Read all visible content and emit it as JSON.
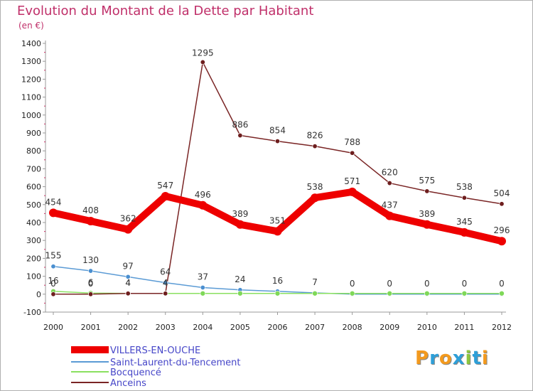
{
  "chart_data": {
    "type": "line",
    "title": "Evolution du Montant de la Dette par Habitant",
    "subtitle": "(en €)",
    "x": [
      "2000",
      "2001",
      "2002",
      "2003",
      "2004",
      "2005",
      "2006",
      "2007",
      "2008",
      "2009",
      "2010",
      "2011",
      "2012"
    ],
    "ylim": [
      -100,
      1400
    ],
    "yticks": [
      -100,
      0,
      100,
      200,
      300,
      400,
      500,
      600,
      700,
      800,
      900,
      1000,
      1100,
      1200,
      1300,
      1400
    ],
    "grid": false,
    "legend_position": "bottom-left",
    "series": [
      {
        "name": "VILLERS-EN-OUCHE",
        "color": "#ee0000",
        "values": [
          454,
          408,
          362,
          547,
          496,
          389,
          351,
          538,
          571,
          437,
          389,
          345,
          296
        ],
        "labels": [
          "454",
          "408",
          "362",
          "547",
          "496",
          "389",
          "351",
          "538",
          "571",
          "437",
          "389",
          "345",
          "296"
        ]
      },
      {
        "name": "Saint-Laurent-du-Tencement",
        "color": "#5b9bd5",
        "values": [
          155,
          130,
          97,
          64,
          37,
          24,
          16,
          7,
          0,
          0,
          0,
          0,
          0
        ],
        "labels": [
          "155",
          "130",
          "97",
          "64",
          "37",
          "24",
          "16",
          "7",
          "0",
          "0",
          "0",
          "0",
          "0"
        ]
      },
      {
        "name": "Bocquencé",
        "color": "#8ae060",
        "values": [
          16,
          6,
          4,
          4,
          4,
          4,
          4,
          4,
          4,
          4,
          4,
          4,
          4
        ],
        "labels": [
          "16",
          "6",
          "4",
          "4",
          "",
          "",
          "",
          "",
          "",
          "",
          "",
          "",
          ""
        ]
      },
      {
        "name": "Anceins",
        "color": "#7a2525",
        "values": [
          0,
          0,
          4,
          4,
          1295,
          886,
          854,
          826,
          788,
          620,
          575,
          538,
          504
        ],
        "labels": [
          "0",
          "0",
          "4",
          "4",
          "1295",
          "886",
          "854",
          "826",
          "788",
          "620",
          "575",
          "538",
          "504"
        ]
      }
    ]
  },
  "logo": {
    "letters": [
      "P",
      "r",
      "o",
      "x",
      "i",
      "t",
      "i"
    ],
    "colors": [
      "#f39a1e",
      "#2e9fd8",
      "#f39a1e",
      "#2e9fd8",
      "#8cc63e",
      "#2e9fd8",
      "#f39a1e"
    ]
  }
}
